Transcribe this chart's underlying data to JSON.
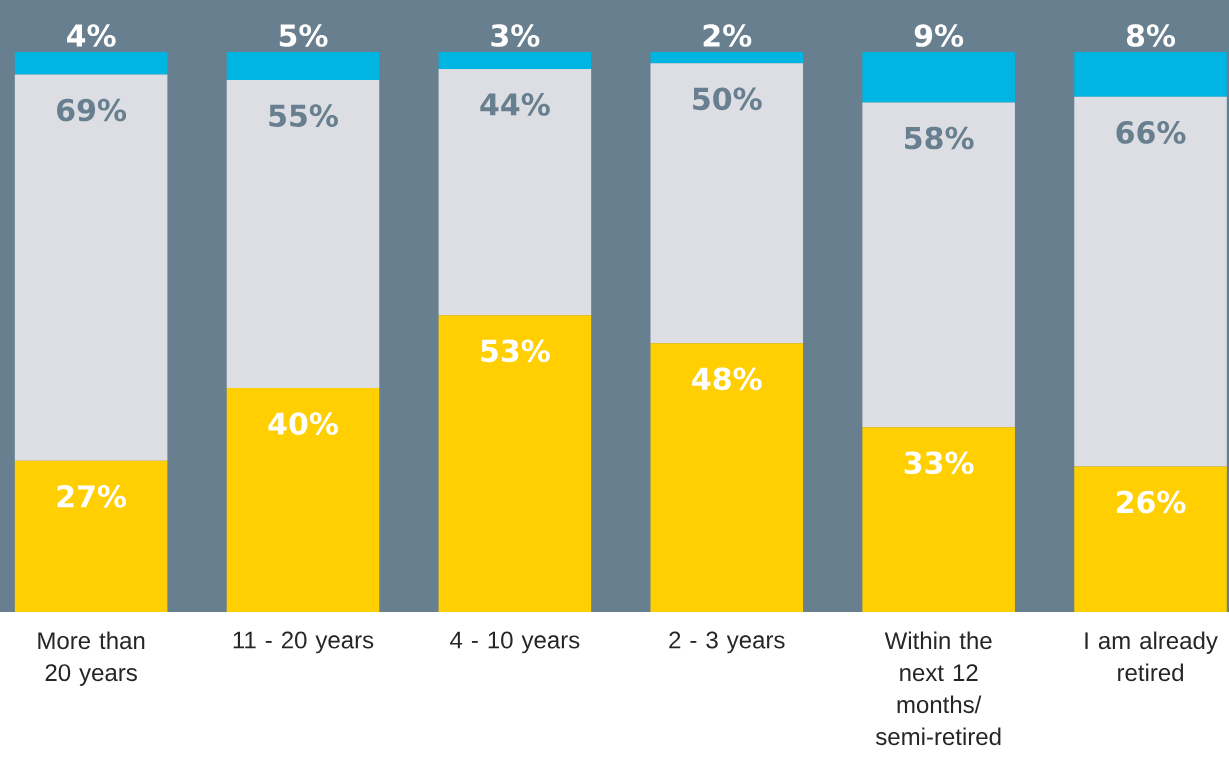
{
  "chart_data": {
    "type": "bar",
    "stacked": true,
    "tick_labels": "x",
    "categories": [
      "More than 20 years",
      "11 - 20 years",
      "4 - 10 years",
      "2 - 3 years",
      "Within the next 12 months/ semi-retired",
      "I am already retired"
    ],
    "series": [
      {
        "color": "#ffcf01",
        "values": [
          27,
          40,
          53,
          48,
          33,
          26
        ],
        "value_labels": [
          "27%",
          "40%",
          "53%",
          "48%",
          "33%",
          "26%"
        ]
      },
      {
        "color": "#dcdee3",
        "values": [
          69,
          55,
          44,
          50,
          58,
          66
        ],
        "value_labels": [
          "69%",
          "55%",
          "44%",
          "50%",
          "58%",
          "66%"
        ]
      },
      {
        "color": "#00b5e2",
        "values": [
          4,
          5,
          3,
          2,
          9,
          8
        ],
        "value_labels": [
          "4%",
          "5%",
          "3%",
          "2%",
          "9%",
          "8%"
        ]
      }
    ]
  }
}
